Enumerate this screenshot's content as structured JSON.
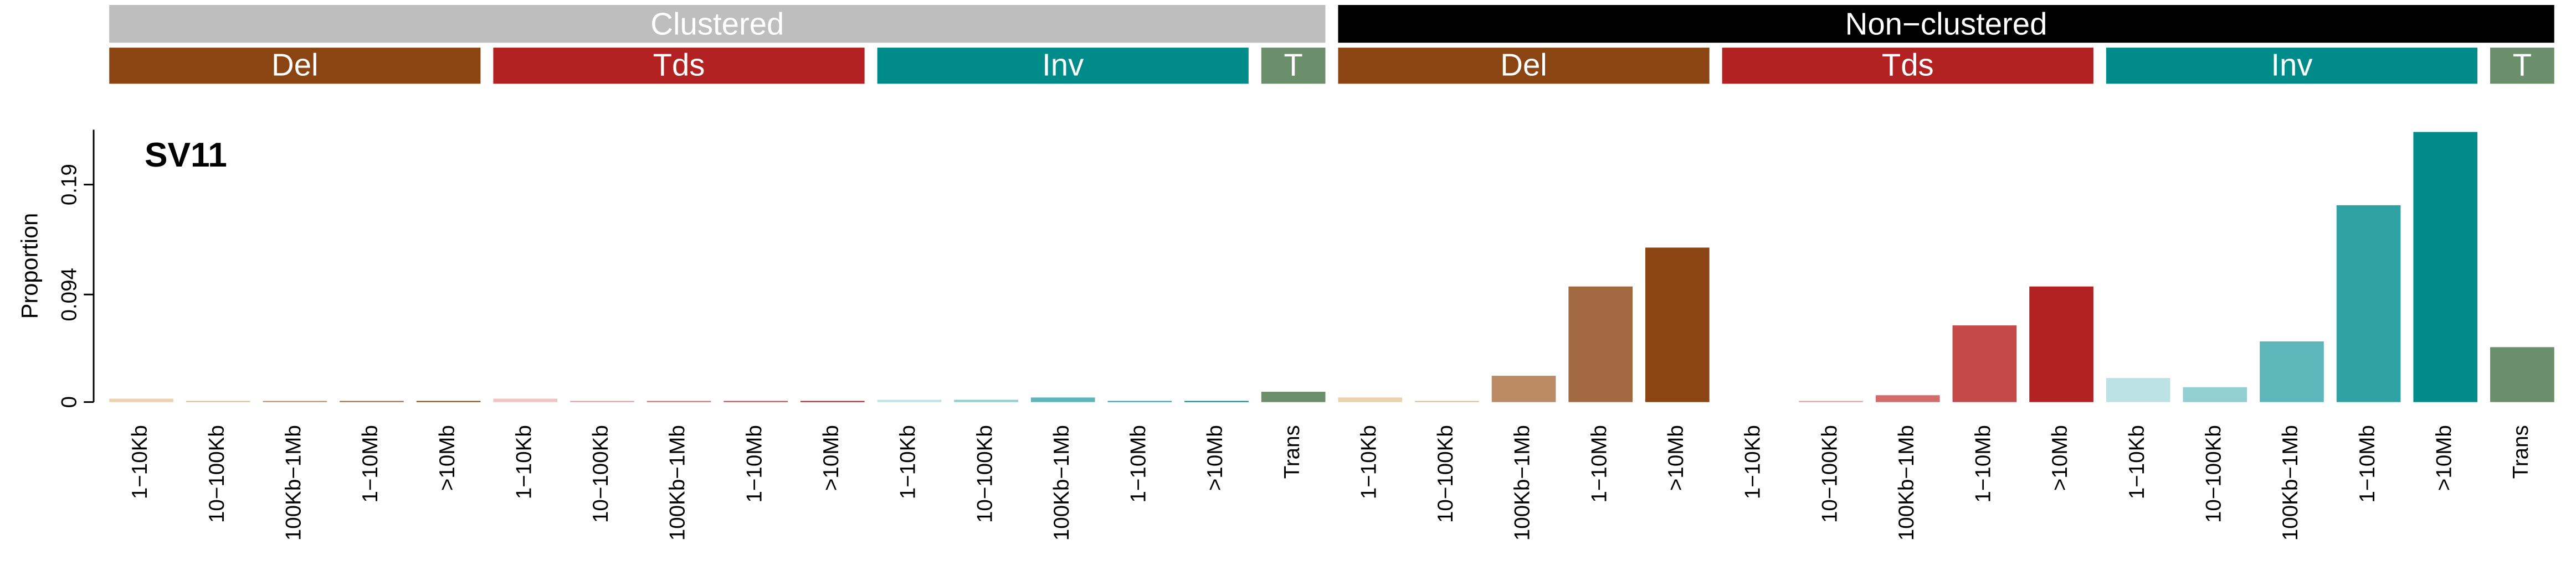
{
  "chart_data": {
    "type": "bar",
    "title": "SV11",
    "y_label": "Proportion",
    "ylim": [
      0,
      0.238
    ],
    "yticks": [
      0,
      0.094,
      0.19
    ],
    "groups": [
      {
        "name": "Clustered",
        "color": "#bebebe",
        "subgroups": [
          {
            "name": "Del",
            "color": "#8b4513",
            "categories": [
              "1−10Kb",
              "10−100Kb",
              "100Kb−1Mb",
              "1−10Mb",
              ">10Mb"
            ],
            "values": [
              0.003,
              0.001,
              0.001,
              0.001,
              0.001
            ],
            "colors": [
              "#ecd1ae",
              "#dcbb98",
              "#bb8b66",
              "#a2683f",
              "#8b4513"
            ]
          },
          {
            "name": "Tds",
            "color": "#b22222",
            "categories": [
              "1−10Kb",
              "10−100Kb",
              "100Kb−1Mb",
              "1−10Mb",
              ">10Mb"
            ],
            "values": [
              0.003,
              0.001,
              0.001,
              0.001,
              0.001
            ],
            "colors": [
              "#f2c4c4",
              "#e69a9a",
              "#d26c6c",
              "#c44a4a",
              "#b22222"
            ]
          },
          {
            "name": "Inv",
            "color": "#008b8b",
            "categories": [
              "1−10Kb",
              "10−100Kb",
              "100Kb−1Mb",
              "1−10Mb",
              ">10Mb"
            ],
            "values": [
              0.002,
              0.002,
              0.004,
              0.001,
              0.001
            ],
            "colors": [
              "#bde2e5",
              "#92cfd2",
              "#5db6b9",
              "#31a2a4",
              "#008b8b"
            ]
          },
          {
            "name": "T",
            "color": "#6b8e6b",
            "categories": [
              "Trans"
            ],
            "values": [
              0.009
            ],
            "colors": [
              "#6b8e6b"
            ]
          }
        ]
      },
      {
        "name": "Non−clustered",
        "color": "#000000",
        "subgroups": [
          {
            "name": "Del",
            "color": "#8b4513",
            "categories": [
              "1−10Kb",
              "10−100Kb",
              "100Kb−1Mb",
              "1−10Mb",
              ">10Mb"
            ],
            "values": [
              0.004,
              0.001,
              0.023,
              0.101,
              0.135
            ],
            "colors": [
              "#ecd1ae",
              "#dcbb98",
              "#bb8b66",
              "#a2683f",
              "#8b4513"
            ]
          },
          {
            "name": "Tds",
            "color": "#b22222",
            "categories": [
              "1−10Kb",
              "10−100Kb",
              "100Kb−1Mb",
              "1−10Mb",
              ">10Mb"
            ],
            "values": [
              0,
              0.001,
              0.006,
              0.067,
              0.101
            ],
            "colors": [
              "#f2c4c4",
              "#e69a9a",
              "#d26c6c",
              "#c44a4a",
              "#b22222"
            ]
          },
          {
            "name": "Inv",
            "color": "#008b8b",
            "categories": [
              "1−10Kb",
              "10−100Kb",
              "100Kb−1Mb",
              "1−10Mb",
              ">10Mb"
            ],
            "values": [
              0.021,
              0.013,
              0.053,
              0.172,
              0.236
            ],
            "colors": [
              "#bde2e5",
              "#92cfd2",
              "#5db6b9",
              "#31a2a4",
              "#008b8b"
            ]
          },
          {
            "name": "T",
            "color": "#6b8e6b",
            "categories": [
              "Trans"
            ],
            "values": [
              0.048
            ],
            "colors": [
              "#6b8e6b"
            ]
          }
        ]
      }
    ]
  }
}
